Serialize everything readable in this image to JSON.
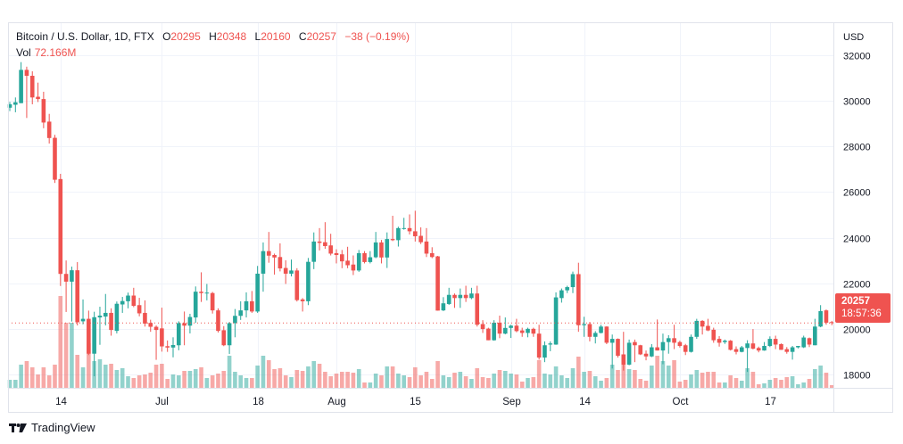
{
  "legend": {
    "symbol": "Bitcoin / U.S. Dollar, 1D, FTX",
    "open_label": "O",
    "open": "20295",
    "high_label": "H",
    "high": "20348",
    "low_label": "L",
    "low": "20160",
    "close_label": "C",
    "close": "20257",
    "change": "−38 (−0.19%)",
    "vol_label": "Vol",
    "vol": "72.166M"
  },
  "price_label": {
    "price": "20257",
    "countdown": "18:57:36"
  },
  "footer": {
    "brand": "TradingView"
  },
  "colors": {
    "up": "#26a69a",
    "down": "#ef5350",
    "grid": "#f0f3fa",
    "text": "#131722"
  },
  "chart_data": {
    "type": "candlestick",
    "title": "Bitcoin / U.S. Dollar, 1D, FTX",
    "currency_label": "USD",
    "ylim": [
      17500,
      33000
    ],
    "y_ticks": [
      18000,
      20000,
      22000,
      24000,
      26000,
      28000,
      30000,
      32000
    ],
    "y_tick_labels": [
      "18000",
      "20000",
      "22000",
      "24000",
      "26000",
      "28000",
      "30000",
      "32000"
    ],
    "x_ticks": [
      {
        "index": 9,
        "label": "14"
      },
      {
        "index": 27,
        "label": "Jul"
      },
      {
        "index": 44,
        "label": "18"
      },
      {
        "index": 58,
        "label": "Aug"
      },
      {
        "index": 72,
        "label": "15"
      },
      {
        "index": 89,
        "label": "Sep"
      },
      {
        "index": 102,
        "label": "14"
      },
      {
        "index": 119,
        "label": "Oct"
      },
      {
        "index": 135,
        "label": "17"
      }
    ],
    "last_price": 20257,
    "ohlc": [
      [
        29700,
        29950,
        29550,
        29850
      ],
      [
        29830,
        30150,
        29500,
        29940
      ],
      [
        29900,
        31700,
        29900,
        31360
      ],
      [
        31360,
        31500,
        29250,
        31100
      ],
      [
        31100,
        31300,
        29850,
        30150
      ],
      [
        30180,
        30800,
        29950,
        30080
      ],
      [
        30080,
        30400,
        28800,
        29050
      ],
      [
        29090,
        29430,
        28130,
        28370
      ],
      [
        28380,
        28510,
        26400,
        26540
      ],
      [
        26570,
        26800,
        21880,
        22410
      ],
      [
        22410,
        23000,
        20740,
        22070
      ],
      [
        22070,
        22730,
        20320,
        22570
      ],
      [
        22570,
        22930,
        20150,
        20290
      ],
      [
        20330,
        21290,
        20200,
        20440
      ],
      [
        20440,
        20800,
        18850,
        18910
      ],
      [
        18910,
        20750,
        17920,
        20510
      ],
      [
        20500,
        20970,
        19300,
        20580
      ],
      [
        20540,
        21530,
        20150,
        20700
      ],
      [
        20700,
        20900,
        19700,
        19950
      ],
      [
        19910,
        21200,
        19800,
        21100
      ],
      [
        21070,
        21400,
        20700,
        21220
      ],
      [
        21210,
        21590,
        20900,
        21460
      ],
      [
        21460,
        21800,
        20950,
        21010
      ],
      [
        21040,
        21360,
        20550,
        20680
      ],
      [
        20700,
        21250,
        20100,
        20230
      ],
      [
        20260,
        20400,
        19870,
        20090
      ],
      [
        20090,
        20150,
        18640,
        19950
      ],
      [
        20020,
        20930,
        19000,
        19230
      ],
      [
        19240,
        19490,
        18990,
        19180
      ],
      [
        19180,
        19630,
        18750,
        19290
      ],
      [
        19280,
        20330,
        19060,
        20250
      ],
      [
        20250,
        20760,
        19280,
        20140
      ],
      [
        20140,
        20660,
        19800,
        20520
      ],
      [
        20500,
        21860,
        20260,
        21630
      ],
      [
        21630,
        22480,
        21180,
        21570
      ],
      [
        21570,
        21970,
        21250,
        21590
      ],
      [
        21570,
        21620,
        20670,
        20810
      ],
      [
        20810,
        20900,
        19840,
        19910
      ],
      [
        19940,
        20120,
        19240,
        19280
      ],
      [
        19280,
        20300,
        18900,
        20250
      ],
      [
        20250,
        20870,
        19630,
        20570
      ],
      [
        20570,
        21210,
        20390,
        20810
      ],
      [
        20810,
        21600,
        20500,
        21210
      ],
      [
        21210,
        21660,
        20700,
        20760
      ],
      [
        20760,
        22760,
        20700,
        22420
      ],
      [
        22420,
        23790,
        21630,
        23410
      ],
      [
        23410,
        24250,
        22900,
        23210
      ],
      [
        23240,
        23300,
        22380,
        23130
      ],
      [
        23150,
        23750,
        22520,
        22650
      ],
      [
        22670,
        23010,
        21970,
        22420
      ],
      [
        22420,
        23040,
        22300,
        22560
      ],
      [
        22560,
        22660,
        21200,
        21260
      ],
      [
        21290,
        21350,
        20760,
        21210
      ],
      [
        21210,
        23110,
        21040,
        22940
      ],
      [
        22940,
        24230,
        22620,
        23830
      ],
      [
        23830,
        24420,
        23440,
        23770
      ],
      [
        23800,
        24680,
        23510,
        23630
      ],
      [
        23660,
        24170,
        23220,
        23300
      ],
      [
        23320,
        23490,
        22870,
        23240
      ],
      [
        23270,
        23460,
        22660,
        22960
      ],
      [
        22990,
        23600,
        22660,
        22790
      ],
      [
        22820,
        23220,
        22360,
        22560
      ],
      [
        22560,
        23460,
        22500,
        23320
      ],
      [
        23320,
        23410,
        22870,
        22930
      ],
      [
        22930,
        23410,
        22870,
        23140
      ],
      [
        23140,
        24250,
        23100,
        23790
      ],
      [
        23790,
        23900,
        22870,
        23130
      ],
      [
        23130,
        24230,
        22670,
        23940
      ],
      [
        23940,
        24960,
        23850,
        23890
      ],
      [
        23890,
        24480,
        23610,
        24420
      ],
      [
        24390,
        24870,
        24350,
        24420
      ],
      [
        24420,
        25020,
        24140,
        24280
      ],
      [
        24280,
        25180,
        23830,
        24060
      ],
      [
        24080,
        24450,
        23720,
        23800
      ],
      [
        23830,
        24420,
        23150,
        23300
      ],
      [
        23320,
        23580,
        23100,
        23150
      ],
      [
        23180,
        23200,
        20800,
        20800
      ],
      [
        20810,
        21390,
        20780,
        21120
      ],
      [
        21090,
        21800,
        21050,
        21490
      ],
      [
        21490,
        21550,
        20920,
        21350
      ],
      [
        21350,
        21770,
        20920,
        21490
      ],
      [
        21490,
        21890,
        21180,
        21350
      ],
      [
        21350,
        21800,
        21300,
        21550
      ],
      [
        21550,
        21890,
        20100,
        20180
      ],
      [
        20210,
        20380,
        19820,
        19990
      ],
      [
        20010,
        20050,
        19500,
        19500
      ],
      [
        19500,
        20380,
        19480,
        20270
      ],
      [
        20270,
        20580,
        19590,
        19790
      ],
      [
        19790,
        20500,
        19760,
        20040
      ],
      [
        20040,
        20180,
        19600,
        20140
      ],
      [
        20140,
        20440,
        19850,
        19900
      ],
      [
        19930,
        20050,
        19650,
        19820
      ],
      [
        19820,
        20050,
        19630,
        20000
      ],
      [
        20000,
        20050,
        19650,
        19790
      ],
      [
        19790,
        20180,
        18650,
        18740
      ],
      [
        18740,
        19450,
        18540,
        19280
      ],
      [
        19310,
        19450,
        19020,
        19360
      ],
      [
        19310,
        21600,
        19300,
        21380
      ],
      [
        21350,
        21770,
        21150,
        21690
      ],
      [
        21690,
        21890,
        21570,
        21830
      ],
      [
        21830,
        22510,
        21570,
        22400
      ],
      [
        22400,
        22900,
        19870,
        20160
      ],
      [
        20160,
        20530,
        19650,
        20210
      ],
      [
        20210,
        20300,
        19450,
        19650
      ],
      [
        19650,
        19900,
        19360,
        19820
      ],
      [
        19820,
        20180,
        19800,
        20100
      ],
      [
        20100,
        20110,
        19330,
        19390
      ],
      [
        19390,
        19750,
        18260,
        19560
      ],
      [
        19560,
        19580,
        18740,
        18820
      ],
      [
        18880,
        19870,
        18170,
        18430
      ],
      [
        18430,
        19530,
        18400,
        19390
      ],
      [
        19420,
        19530,
        18540,
        19280
      ],
      [
        19280,
        19300,
        18850,
        18880
      ],
      [
        18910,
        19050,
        18620,
        18790
      ],
      [
        18790,
        19330,
        18760,
        19190
      ],
      [
        19190,
        20410,
        19050,
        19050
      ],
      [
        19050,
        19790,
        18450,
        19420
      ],
      [
        19420,
        19720,
        18910,
        19590
      ],
      [
        19590,
        20180,
        19110,
        19390
      ],
      [
        19420,
        19480,
        19180,
        19250
      ],
      [
        19280,
        19340,
        18850,
        18990
      ],
      [
        18990,
        19750,
        18960,
        19650
      ],
      [
        19650,
        20440,
        19560,
        20350
      ],
      [
        20350,
        20380,
        19750,
        20100
      ],
      [
        20130,
        20440,
        19900,
        19930
      ],
      [
        19960,
        20050,
        19390,
        19500
      ],
      [
        19560,
        19680,
        19220,
        19390
      ],
      [
        19420,
        19530,
        19340,
        19480
      ],
      [
        19480,
        19510,
        19050,
        19080
      ],
      [
        19110,
        19230,
        18880,
        18990
      ],
      [
        18990,
        19250,
        18970,
        19190
      ],
      [
        19160,
        19500,
        18110,
        19360
      ],
      [
        19360,
        19990,
        19100,
        19130
      ],
      [
        19160,
        19220,
        18970,
        19050
      ],
      [
        19050,
        19420,
        19040,
        19250
      ],
      [
        19250,
        19670,
        19200,
        19560
      ],
      [
        19560,
        19700,
        19110,
        19310
      ],
      [
        19330,
        19360,
        19080,
        19080
      ],
      [
        19110,
        19200,
        18910,
        18990
      ],
      [
        18990,
        19250,
        18650,
        19190
      ],
      [
        19190,
        19250,
        19140,
        19250
      ],
      [
        19190,
        19700,
        19160,
        19620
      ],
      [
        19590,
        19620,
        19200,
        19310
      ],
      [
        19280,
        20440,
        19280,
        20100
      ],
      [
        20100,
        21040,
        20070,
        20780
      ],
      [
        20810,
        20850,
        20180,
        20270
      ],
      [
        20295,
        20348,
        20160,
        20257
      ]
    ],
    "volume_m": [
      216,
      216,
      624,
      720,
      552,
      360,
      552,
      336,
      624,
      2472,
      1752,
      1752,
      888,
      552,
      1200,
      720,
      768,
      624,
      648,
      480,
      528,
      312,
      264,
      336,
      360,
      408,
      624,
      648,
      240,
      360,
      336,
      456,
      456,
      504,
      552,
      264,
      336,
      384,
      456,
      864,
      432,
      336,
      264,
      264,
      600,
      864,
      744,
      504,
      528,
      336,
      288,
      480,
      456,
      576,
      720,
      648,
      432,
      312,
      384,
      432,
      432,
      408,
      504,
      144,
      144,
      384,
      336,
      576,
      576,
      384,
      336,
      288,
      552,
      336,
      432,
      240,
      720,
      336,
      288,
      408,
      432,
      312,
      240,
      528,
      288,
      264,
      384,
      480,
      456,
      384,
      360,
      168,
      264,
      288,
      744,
      384,
      360,
      576,
      336,
      264,
      528,
      840,
      432,
      456,
      312,
      192,
      264,
      624,
      480,
      744,
      504,
      480,
      240,
      192,
      600,
      864,
      720,
      600,
      744,
      168,
      216,
      360,
      480,
      408,
      432,
      432,
      144,
      144,
      336,
      264,
      192,
      528,
      432,
      96,
      120,
      216,
      264,
      216,
      288,
      312,
      96,
      144,
      240,
      504,
      600,
      408,
      72
    ]
  }
}
